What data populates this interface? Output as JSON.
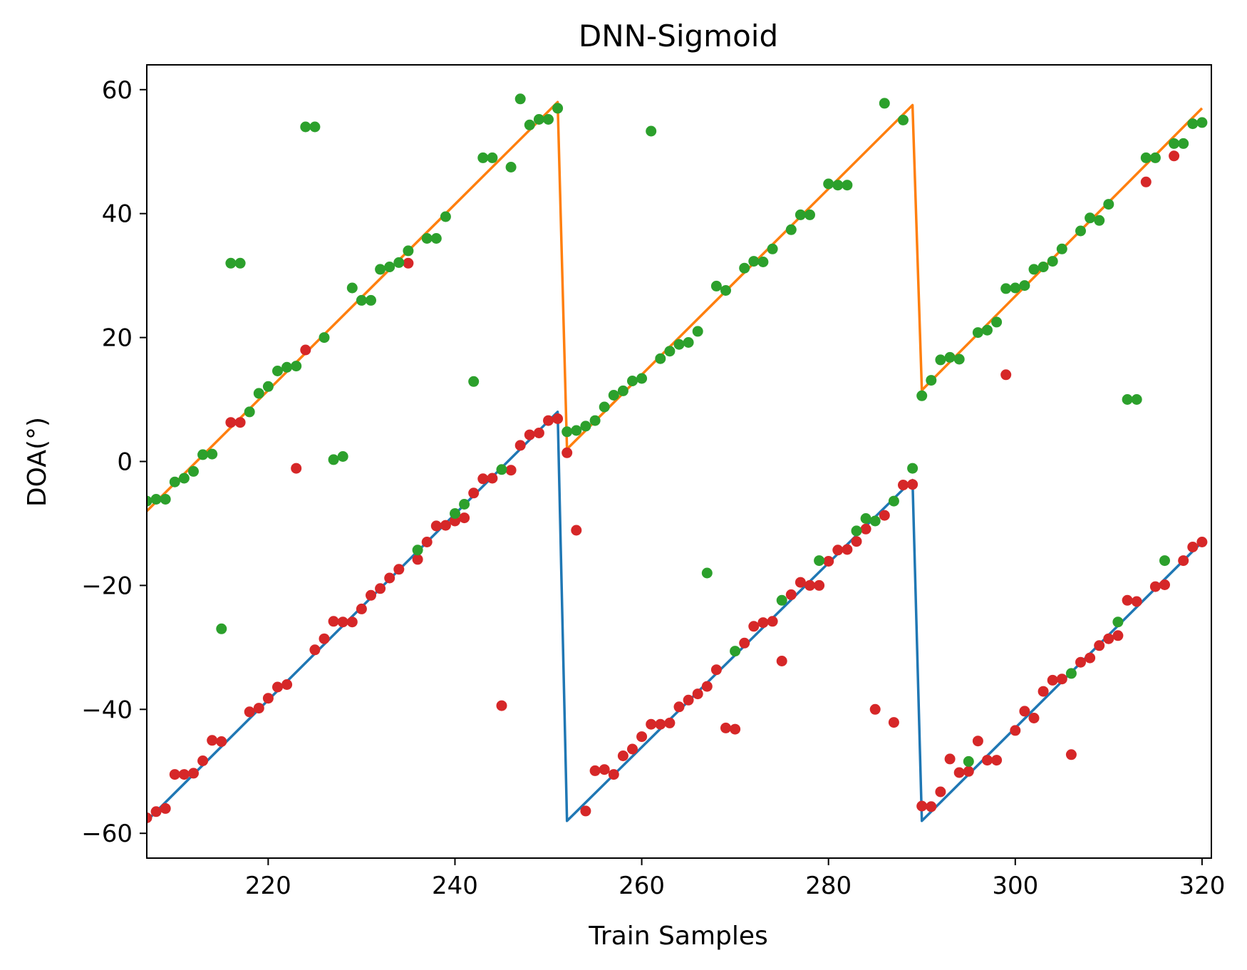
{
  "chart_data": {
    "type": "line",
    "title": "DNN-Sigmoid",
    "xlabel": "Train Samples",
    "ylabel": "DOA(°)",
    "xlim": [
      207,
      321
    ],
    "ylim": [
      -64,
      64
    ],
    "xticks": [
      220,
      240,
      260,
      280,
      300,
      320
    ],
    "yticks": [
      60,
      40,
      20,
      0,
      -20,
      -40,
      -60
    ],
    "xtick_labels": [
      "220",
      "240",
      "260",
      "280",
      "300",
      "320"
    ],
    "ytick_labels": [
      "60",
      "40",
      "20",
      "0",
      "−20",
      "−40",
      "−60"
    ],
    "grid": false,
    "lines": [
      {
        "color": "#1f77b4",
        "x": [
          207,
          251,
          252,
          289,
          290,
          320
        ],
        "y": [
          -58,
          8,
          -58,
          -3,
          -58,
          -13
        ]
      },
      {
        "color": "#ff7f0e",
        "x": [
          207,
          251,
          252,
          289,
          290,
          320
        ],
        "y": [
          -8,
          58,
          2,
          57.5,
          11.5,
          57
        ]
      }
    ],
    "scatter": [
      {
        "color": "#d62728",
        "x": [
          207,
          208,
          209,
          210,
          211,
          212,
          213,
          214,
          215,
          216,
          217,
          218,
          219,
          220,
          221,
          222,
          223,
          224,
          225,
          226,
          227,
          228,
          229,
          230,
          231,
          232,
          233,
          234,
          235,
          236,
          237,
          238,
          239,
          240,
          241,
          242,
          243,
          244,
          245,
          246,
          247,
          248,
          249,
          250,
          251,
          252,
          253,
          254,
          255,
          256,
          257,
          258,
          259,
          260,
          261,
          262,
          263,
          264,
          265,
          266,
          267,
          268,
          269,
          270,
          271,
          272,
          273,
          274,
          275,
          276,
          277,
          278,
          279,
          280,
          281,
          282,
          283,
          284,
          285,
          286,
          287,
          288,
          289,
          290,
          291,
          292,
          293,
          294,
          295,
          296,
          297,
          298,
          299,
          300,
          301,
          302,
          303,
          304,
          305,
          306,
          307,
          308,
          309,
          310,
          311,
          312,
          313,
          314,
          315,
          316,
          317,
          318,
          319,
          320
        ],
        "y": [
          -57.5,
          -56.5,
          -56,
          -50.5,
          -50.5,
          -50.3,
          -48.3,
          -45,
          -45.2,
          6.3,
          6.3,
          -40.4,
          -39.8,
          -38.2,
          -36.4,
          -36,
          -1.1,
          18,
          -30.4,
          -28.6,
          -25.8,
          -25.9,
          -25.9,
          -23.8,
          -21.6,
          -20.5,
          -18.8,
          -17.4,
          32,
          -15.8,
          -13,
          -10.4,
          -10.3,
          -9.6,
          -9.1,
          -5.1,
          -2.8,
          -2.7,
          -39.4,
          -1.4,
          2.6,
          4.3,
          4.6,
          6.6,
          6.9,
          1.4,
          -11.1,
          -56.4,
          -49.9,
          -49.7,
          -50.5,
          -47.5,
          -46.4,
          -44.4,
          -42.4,
          -42.4,
          -42.2,
          -39.6,
          -38.5,
          -37.5,
          -36.3,
          -33.6,
          -43,
          -43.2,
          -29.3,
          -26.6,
          -26,
          -25.8,
          -32.2,
          -21.5,
          -19.5,
          -20,
          -20,
          -16.1,
          -14.3,
          -14.2,
          -12.9,
          -10.9,
          -40,
          -8.7,
          -42.1,
          -3.8,
          -3.7,
          -55.6,
          -55.7,
          -53.3,
          -48,
          -50.2,
          -50,
          -45.1,
          -48.2,
          -48.2,
          14,
          -43.4,
          -40.3,
          -41.4,
          -37.1,
          -35.3,
          -35.1,
          -47.3,
          -32.4,
          -31.7,
          -29.7,
          -28.6,
          -28.1,
          -22.4,
          -22.6,
          45.1,
          -20.2,
          -19.9,
          49.3,
          -16,
          -13.8,
          -13
        ]
      },
      {
        "color": "#2ca02c",
        "x": [
          207,
          208,
          209,
          210,
          211,
          212,
          213,
          214,
          215,
          216,
          217,
          218,
          219,
          220,
          221,
          222,
          223,
          224,
          225,
          226,
          227,
          228,
          229,
          230,
          231,
          232,
          233,
          234,
          235,
          236,
          237,
          238,
          239,
          240,
          241,
          242,
          243,
          244,
          245,
          246,
          247,
          248,
          249,
          250,
          251,
          252,
          253,
          254,
          255,
          256,
          257,
          258,
          259,
          260,
          261,
          262,
          263,
          264,
          265,
          266,
          267,
          268,
          269,
          270,
          271,
          272,
          273,
          274,
          275,
          276,
          277,
          278,
          279,
          280,
          281,
          282,
          283,
          284,
          285,
          286,
          287,
          288,
          289,
          290,
          291,
          292,
          293,
          294,
          295,
          296,
          297,
          298,
          299,
          300,
          301,
          302,
          303,
          304,
          305,
          306,
          307,
          308,
          309,
          310,
          311,
          312,
          313,
          314,
          315,
          316,
          317,
          318,
          319,
          320
        ],
        "y": [
          -6.4,
          -6.1,
          -6.1,
          -3.3,
          -2.7,
          -1.6,
          1.1,
          1.2,
          -27,
          32,
          32,
          8,
          11,
          12.1,
          14.6,
          15.2,
          15.4,
          54,
          54,
          20,
          0.3,
          0.8,
          28,
          26,
          26,
          31,
          31.4,
          32.1,
          34,
          -14.3,
          36,
          36,
          39.5,
          -8.4,
          -6.9,
          12.9,
          49,
          49,
          -1.3,
          47.5,
          58.5,
          54.3,
          55.2,
          55.2,
          57,
          4.8,
          5,
          5.7,
          6.6,
          8.8,
          10.7,
          11.4,
          13,
          13.4,
          53.3,
          16.6,
          17.8,
          18.9,
          19.2,
          21,
          -18,
          28.3,
          27.6,
          -30.6,
          31.2,
          32.3,
          32.2,
          34.3,
          -22.4,
          37.4,
          39.8,
          39.8,
          -16,
          44.8,
          44.6,
          44.6,
          -11.2,
          -9.2,
          -9.6,
          57.8,
          -6.4,
          55.1,
          -1.1,
          10.6,
          13.1,
          16.4,
          16.8,
          16.5,
          -48.4,
          20.8,
          21.2,
          22.5,
          27.9,
          28,
          28.4,
          31,
          31.4,
          32.3,
          34.3,
          -34.2,
          37.2,
          39.3,
          38.9,
          41.5,
          -25.9,
          10,
          10,
          49,
          49,
          -16,
          51.3,
          51.3,
          54.5,
          54.7
        ]
      }
    ]
  }
}
